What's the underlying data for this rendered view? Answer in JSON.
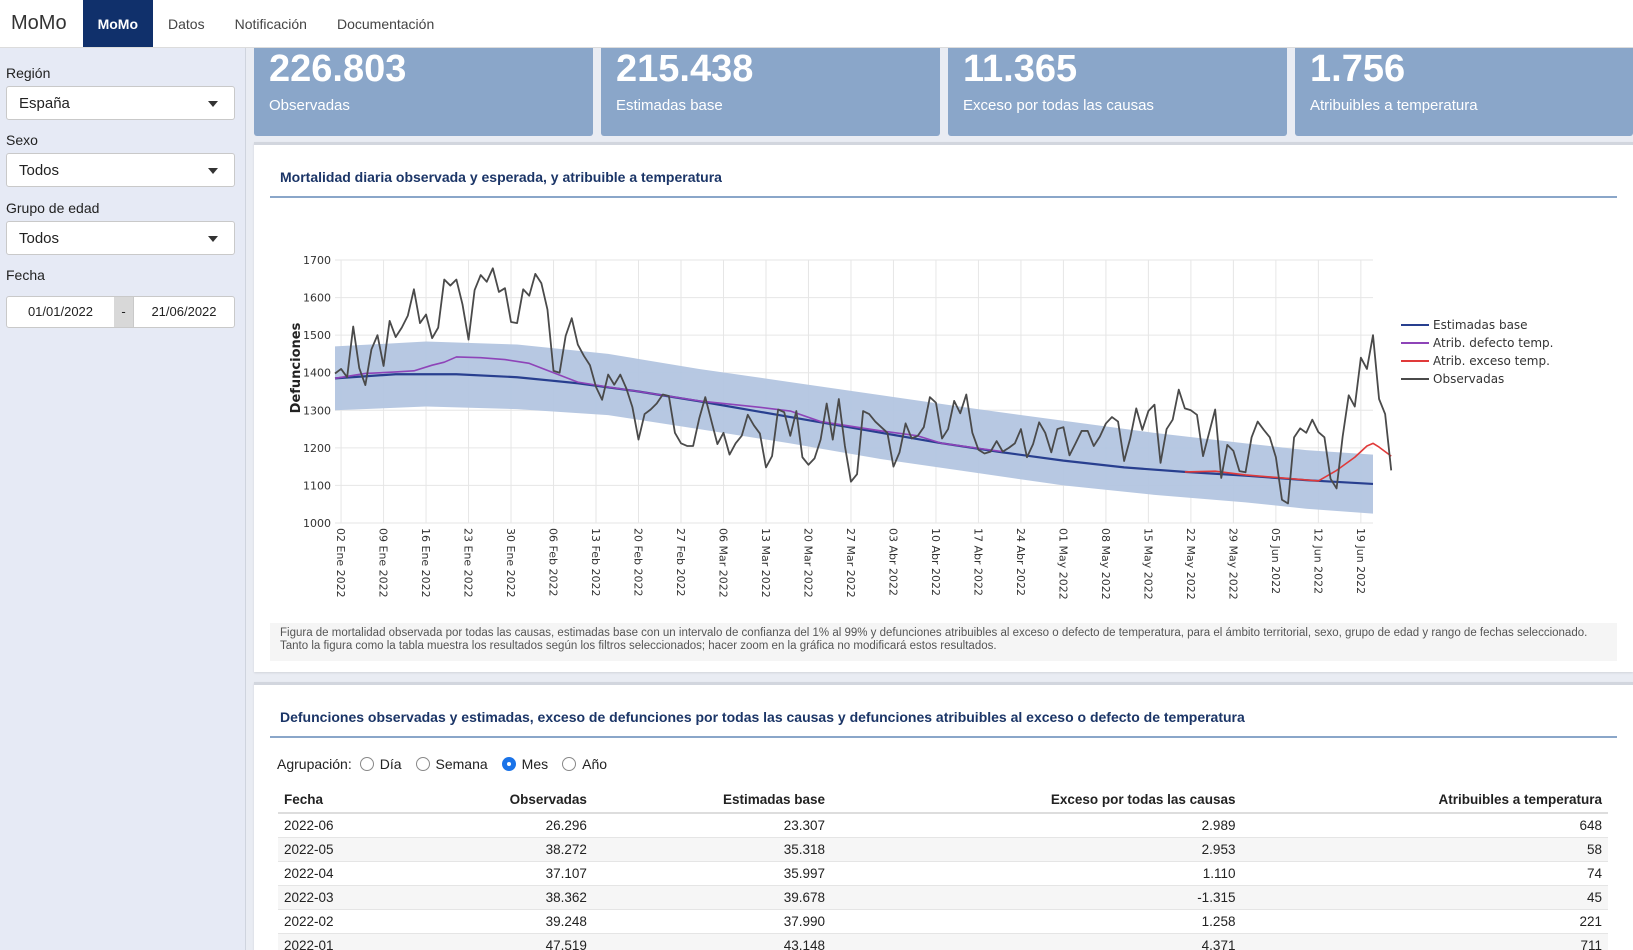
{
  "navbar": {
    "brand": "MoMo",
    "tabs": [
      "MoMo",
      "Datos",
      "Notificación",
      "Documentación"
    ]
  },
  "sidebar": {
    "region_label": "Región",
    "region_value": "España",
    "sexo_label": "Sexo",
    "sexo_value": "Todos",
    "edad_label": "Grupo de edad",
    "edad_value": "Todos",
    "fecha_label": "Fecha",
    "fecha_start": "01/01/2022",
    "fecha_sep": "-",
    "fecha_end": "21/06/2022"
  },
  "value_boxes": [
    {
      "value": "226.803",
      "label": "Observadas"
    },
    {
      "value": "215.438",
      "label": "Estimadas base"
    },
    {
      "value": "11.365",
      "label": "Exceso por todas las causas"
    },
    {
      "value": "1.756",
      "label": "Atribuibles a temperatura"
    }
  ],
  "chart_panel": {
    "title": "Mortalidad diaria observada y esperada, y atribuible a temperatura",
    "caption": "Figura de mortalidad observada por todas las causas, estimadas base con un intervalo de confianza del 1% al 99% y defunciones atribuibles al exceso o defecto de temperatura, para el ámbito territorial, sexo, grupo de edad y rango de fechas seleccionado. Tanto la figura como la tabla muestra los resultados según los filtros seleccionados; hacer zoom en la gráfica no modificará estos resultados."
  },
  "chart_data": {
    "type": "line",
    "title": "Mortalidad diaria observada y esperada, y atribuible a temperatura",
    "ylabel": "Defunciones",
    "xlabel": "",
    "ylim": [
      1000,
      1700
    ],
    "x_range_days": [
      0,
      171
    ],
    "yticks": [
      1000,
      1100,
      1200,
      1300,
      1400,
      1500,
      1600,
      1700
    ],
    "xtick_labels": [
      "02 Ene 2022",
      "09 Ene 2022",
      "16 Ene 2022",
      "23 Ene 2022",
      "30 Ene 2022",
      "06 Feb 2022",
      "13 Feb 2022",
      "20 Feb 2022",
      "27 Feb 2022",
      "06 Mar 2022",
      "13 Mar 2022",
      "20 Mar 2022",
      "27 Mar 2022",
      "03 Abr 2022",
      "10 Abr 2022",
      "17 Abr 2022",
      "24 Abr 2022",
      "01 May 2022",
      "08 May 2022",
      "15 May 2022",
      "22 May 2022",
      "29 May 2022",
      "05 Jun 2022",
      "12 Jun 2022",
      "19 Jun 2022"
    ],
    "xtick_days": [
      1,
      8,
      15,
      22,
      29,
      36,
      43,
      50,
      57,
      64,
      71,
      78,
      85,
      92,
      99,
      106,
      113,
      120,
      127,
      134,
      141,
      148,
      155,
      162,
      169
    ],
    "legend_position": "top-right",
    "legend": [
      {
        "name": "Estimadas base",
        "color": "#283f8f"
      },
      {
        "name": "Atrib. defecto temp.",
        "color": "#8e44b8"
      },
      {
        "name": "Atrib. exceso temp.",
        "color": "#e03a3a"
      },
      {
        "name": "Observadas",
        "color": "#4a4a4a"
      }
    ],
    "band_color": "#b3c5e0",
    "series": [
      {
        "name": "Estimadas base",
        "points": [
          [
            0,
            1385
          ],
          [
            10,
            1396
          ],
          [
            20,
            1396
          ],
          [
            30,
            1388
          ],
          [
            40,
            1372
          ],
          [
            50,
            1350
          ],
          [
            60,
            1324
          ],
          [
            70,
            1296
          ],
          [
            80,
            1268
          ],
          [
            90,
            1240
          ],
          [
            100,
            1212
          ],
          [
            110,
            1188
          ],
          [
            120,
            1166
          ],
          [
            130,
            1148
          ],
          [
            140,
            1136
          ],
          [
            150,
            1126
          ],
          [
            160,
            1114
          ],
          [
            171,
            1104
          ]
        ]
      },
      {
        "name": "Banda superior",
        "points": [
          [
            0,
            1470
          ],
          [
            15,
            1483
          ],
          [
            30,
            1475
          ],
          [
            45,
            1450
          ],
          [
            60,
            1410
          ],
          [
            75,
            1375
          ],
          [
            90,
            1340
          ],
          [
            105,
            1305
          ],
          [
            120,
            1272
          ],
          [
            135,
            1240
          ],
          [
            150,
            1212
          ],
          [
            160,
            1194
          ],
          [
            171,
            1182
          ]
        ]
      },
      {
        "name": "Banda inferior",
        "points": [
          [
            0,
            1300
          ],
          [
            15,
            1310
          ],
          [
            30,
            1303
          ],
          [
            45,
            1287
          ],
          [
            60,
            1250
          ],
          [
            75,
            1212
          ],
          [
            90,
            1170
          ],
          [
            105,
            1135
          ],
          [
            120,
            1100
          ],
          [
            135,
            1075
          ],
          [
            150,
            1055
          ],
          [
            160,
            1038
          ],
          [
            171,
            1025
          ]
        ]
      },
      {
        "name": "Atrib. defecto temp.",
        "points": [
          [
            0,
            1385
          ],
          [
            5,
            1398
          ],
          [
            10,
            1402
          ],
          [
            13,
            1405
          ],
          [
            16,
            1420
          ],
          [
            18,
            1428
          ],
          [
            20,
            1442
          ],
          [
            24,
            1440
          ],
          [
            28,
            1435
          ],
          [
            32,
            1425
          ],
          [
            36,
            1400
          ],
          [
            40,
            1375
          ],
          [
            45,
            1362
          ],
          [
            50,
            1350
          ],
          [
            60,
            1325
          ],
          [
            70,
            1308
          ],
          [
            75,
            1298
          ],
          [
            80,
            1270
          ],
          [
            90,
            1245
          ],
          [
            96,
            1232
          ],
          [
            100,
            1212
          ],
          [
            110,
            1190
          ]
        ]
      },
      {
        "name": "Atrib. exceso temp.",
        "points": [
          [
            140,
            1136
          ],
          [
            145,
            1138
          ],
          [
            150,
            1128
          ],
          [
            162,
            1112
          ],
          [
            165,
            1140
          ],
          [
            168,
            1175
          ],
          [
            170,
            1205
          ],
          [
            171,
            1212
          ],
          [
            172,
            1202
          ],
          [
            174,
            1178
          ]
        ]
      },
      {
        "name": "Observadas",
        "points": [
          [
            0,
            1398
          ],
          [
            1,
            1410
          ],
          [
            2,
            1388
          ],
          [
            3,
            1523
          ],
          [
            4,
            1412
          ],
          [
            5,
            1367
          ],
          [
            6,
            1462
          ],
          [
            7,
            1500
          ],
          [
            8,
            1418
          ],
          [
            9,
            1538
          ],
          [
            10,
            1495
          ],
          [
            11,
            1520
          ],
          [
            12,
            1552
          ],
          [
            13,
            1622
          ],
          [
            14,
            1532
          ],
          [
            15,
            1555
          ],
          [
            16,
            1492
          ],
          [
            17,
            1520
          ],
          [
            18,
            1648
          ],
          [
            19,
            1632
          ],
          [
            20,
            1648
          ],
          [
            21,
            1582
          ],
          [
            22,
            1488
          ],
          [
            23,
            1620
          ],
          [
            24,
            1660
          ],
          [
            25,
            1642
          ],
          [
            26,
            1678
          ],
          [
            27,
            1615
          ],
          [
            28,
            1625
          ],
          [
            29,
            1535
          ],
          [
            30,
            1532
          ],
          [
            31,
            1622
          ],
          [
            32,
            1605
          ],
          [
            33,
            1663
          ],
          [
            34,
            1638
          ],
          [
            35,
            1568
          ],
          [
            36,
            1405
          ],
          [
            37,
            1400
          ],
          [
            38,
            1498
          ],
          [
            39,
            1545
          ],
          [
            40,
            1475
          ],
          [
            41,
            1445
          ],
          [
            42,
            1420
          ],
          [
            43,
            1362
          ],
          [
            44,
            1328
          ],
          [
            45,
            1395
          ],
          [
            46,
            1368
          ],
          [
            47,
            1395
          ],
          [
            48,
            1358
          ],
          [
            49,
            1308
          ],
          [
            50,
            1222
          ],
          [
            51,
            1290
          ],
          [
            52,
            1302
          ],
          [
            53,
            1318
          ],
          [
            54,
            1342
          ],
          [
            55,
            1338
          ],
          [
            56,
            1240
          ],
          [
            57,
            1212
          ],
          [
            58,
            1205
          ],
          [
            59,
            1205
          ],
          [
            60,
            1278
          ],
          [
            61,
            1335
          ],
          [
            62,
            1272
          ],
          [
            63,
            1210
          ],
          [
            64,
            1240
          ],
          [
            65,
            1182
          ],
          [
            66,
            1212
          ],
          [
            67,
            1232
          ],
          [
            68,
            1288
          ],
          [
            69,
            1260
          ],
          [
            70,
            1238
          ],
          [
            71,
            1148
          ],
          [
            72,
            1178
          ],
          [
            73,
            1302
          ],
          [
            74,
            1295
          ],
          [
            75,
            1232
          ],
          [
            76,
            1298
          ],
          [
            77,
            1175
          ],
          [
            78,
            1155
          ],
          [
            79,
            1172
          ],
          [
            80,
            1222
          ],
          [
            81,
            1318
          ],
          [
            82,
            1222
          ],
          [
            83,
            1330
          ],
          [
            84,
            1205
          ],
          [
            85,
            1110
          ],
          [
            86,
            1130
          ],
          [
            87,
            1298
          ],
          [
            88,
            1290
          ],
          [
            89,
            1270
          ],
          [
            90,
            1255
          ],
          [
            91,
            1240
          ],
          [
            92,
            1150
          ],
          [
            93,
            1188
          ],
          [
            94,
            1265
          ],
          [
            95,
            1225
          ],
          [
            96,
            1232
          ],
          [
            97,
            1255
          ],
          [
            98,
            1335
          ],
          [
            99,
            1320
          ],
          [
            100,
            1225
          ],
          [
            101,
            1250
          ],
          [
            102,
            1325
          ],
          [
            103,
            1292
          ],
          [
            104,
            1342
          ],
          [
            105,
            1240
          ],
          [
            106,
            1195
          ],
          [
            107,
            1185
          ],
          [
            108,
            1190
          ],
          [
            109,
            1218
          ],
          [
            110,
            1190
          ],
          [
            111,
            1200
          ],
          [
            112,
            1212
          ],
          [
            113,
            1250
          ],
          [
            114,
            1175
          ],
          [
            115,
            1210
          ],
          [
            116,
            1268
          ],
          [
            117,
            1240
          ],
          [
            118,
            1188
          ],
          [
            119,
            1250
          ],
          [
            120,
            1255
          ],
          [
            121,
            1180
          ],
          [
            122,
            1212
          ],
          [
            123,
            1245
          ],
          [
            124,
            1245
          ],
          [
            125,
            1205
          ],
          [
            126,
            1230
          ],
          [
            127,
            1265
          ],
          [
            128,
            1282
          ],
          [
            129,
            1270
          ],
          [
            130,
            1165
          ],
          [
            131,
            1225
          ],
          [
            132,
            1305
          ],
          [
            133,
            1248
          ],
          [
            134,
            1298
          ],
          [
            135,
            1315
          ],
          [
            136,
            1160
          ],
          [
            137,
            1250
          ],
          [
            138,
            1275
          ],
          [
            139,
            1355
          ],
          [
            140,
            1305
          ],
          [
            141,
            1300
          ],
          [
            142,
            1288
          ],
          [
            143,
            1178
          ],
          [
            144,
            1240
          ],
          [
            145,
            1302
          ],
          [
            146,
            1120
          ],
          [
            147,
            1208
          ],
          [
            148,
            1192
          ],
          [
            149,
            1138
          ],
          [
            150,
            1135
          ],
          [
            151,
            1228
          ],
          [
            152,
            1270
          ],
          [
            153,
            1248
          ],
          [
            154,
            1228
          ],
          [
            155,
            1175
          ],
          [
            156,
            1062
          ],
          [
            157,
            1052
          ],
          [
            158,
            1228
          ],
          [
            159,
            1252
          ],
          [
            160,
            1240
          ],
          [
            161,
            1275
          ],
          [
            162,
            1242
          ],
          [
            163,
            1228
          ],
          [
            164,
            1118
          ],
          [
            165,
            1092
          ],
          [
            166,
            1230
          ],
          [
            167,
            1340
          ],
          [
            168,
            1310
          ],
          [
            169,
            1440
          ],
          [
            170,
            1410
          ],
          [
            171,
            1500
          ],
          [
            172,
            1330
          ],
          [
            173,
            1290
          ],
          [
            174,
            1140
          ]
        ]
      }
    ]
  },
  "table_panel": {
    "title": "Defunciones observadas y estimadas, exceso de defunciones por todas las causas y defunciones atribuibles al exceso o defecto de temperatura",
    "agrupacion_label": "Agrupación:",
    "options": [
      "Día",
      "Semana",
      "Mes",
      "Año"
    ],
    "selected": "Mes",
    "columns": [
      "Fecha",
      "Observadas",
      "Estimadas base",
      "Exceso por todas las causas",
      "Atribuibles a temperatura"
    ],
    "rows": [
      [
        "2022-06",
        "26.296",
        "23.307",
        "2.989",
        "648"
      ],
      [
        "2022-05",
        "38.272",
        "35.318",
        "2.953",
        "58"
      ],
      [
        "2022-04",
        "37.107",
        "35.997",
        "1.110",
        "74"
      ],
      [
        "2022-03",
        "38.362",
        "39.678",
        "-1.315",
        "45"
      ],
      [
        "2022-02",
        "39.248",
        "37.990",
        "1.258",
        "221"
      ],
      [
        "2022-01",
        "47.519",
        "43.148",
        "4.371",
        "711"
      ]
    ]
  }
}
